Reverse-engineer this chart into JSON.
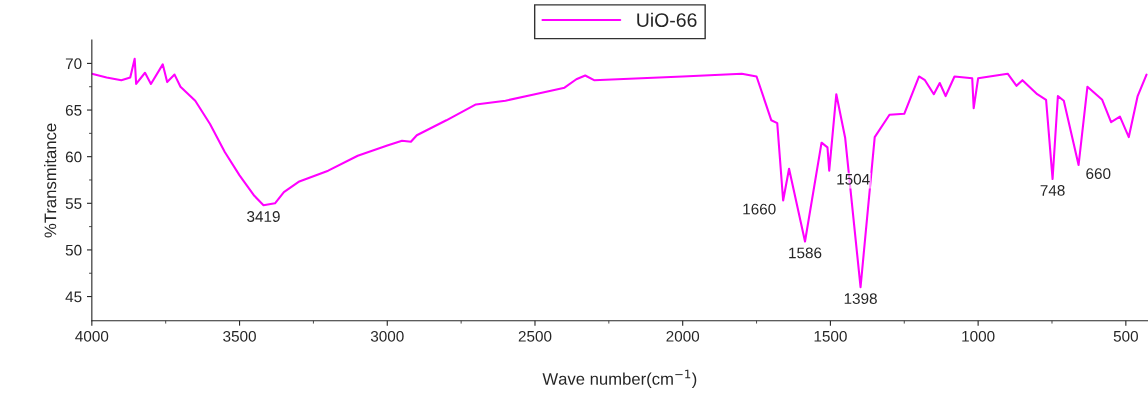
{
  "chart_data": {
    "type": "line",
    "xlabel": "Wave number(cm$^{−1}$)",
    "ylabel": "%Transmitance",
    "xlim": [
      4000,
      425
    ],
    "xticks": [
      4000,
      3500,
      3000,
      2500,
      2000,
      1500,
      1000,
      500
    ],
    "ylim": [
      42.4,
      72.5
    ],
    "yticks": [
      45,
      50,
      55,
      60,
      65,
      70
    ],
    "grid": false,
    "legend": "top",
    "marker": "none",
    "line_style": "solid",
    "series": [
      {
        "name": "UiO-66",
        "color": "#ff00ff",
        "x": [
          4000,
          3950,
          3900,
          3870,
          3855,
          3850,
          3820,
          3800,
          3760,
          3745,
          3720,
          3700,
          3650,
          3600,
          3550,
          3500,
          3450,
          3419,
          3380,
          3350,
          3300,
          3200,
          3100,
          3000,
          2950,
          2920,
          2900,
          2800,
          2700,
          2600,
          2500,
          2400,
          2360,
          2330,
          2300,
          2000,
          1800,
          1750,
          1700,
          1680,
          1660,
          1640,
          1586,
          1530,
          1510,
          1504,
          1480,
          1450,
          1398,
          1350,
          1300,
          1250,
          1200,
          1180,
          1150,
          1130,
          1110,
          1080,
          1020,
          1015,
          1000,
          900,
          870,
          850,
          800,
          770,
          748,
          730,
          710,
          660,
          630,
          580,
          550,
          520,
          490,
          460,
          430
        ],
        "values": [
          68.9,
          68.5,
          68.2,
          68.5,
          70.5,
          67.8,
          69.0,
          67.8,
          69.9,
          68.0,
          68.8,
          67.5,
          66.0,
          63.5,
          60.5,
          58.0,
          55.8,
          54.8,
          55.0,
          56.2,
          57.3,
          58.5,
          60.1,
          61.2,
          61.7,
          61.6,
          62.3,
          63.9,
          65.6,
          66.0,
          66.7,
          67.4,
          68.3,
          68.7,
          68.2,
          68.6,
          68.9,
          68.6,
          63.9,
          63.6,
          55.3,
          58.7,
          50.9,
          61.5,
          61.0,
          58.5,
          66.7,
          62.0,
          46.0,
          62.1,
          64.5,
          64.6,
          68.6,
          68.2,
          66.7,
          67.9,
          66.5,
          68.6,
          68.4,
          65.2,
          68.4,
          68.9,
          67.6,
          68.2,
          66.7,
          66.1,
          57.6,
          66.5,
          66.0,
          59.1,
          67.5,
          66.1,
          63.7,
          64.3,
          62.1,
          66.5,
          68.8
        ]
      }
    ],
    "annotations": [
      {
        "text": "3419",
        "x": 3419,
        "y": 54.8
      },
      {
        "text": "1660",
        "x": 1660,
        "y": 55.3
      },
      {
        "text": "1586",
        "x": 1586,
        "y": 50.9
      },
      {
        "text": "1504",
        "x": 1504,
        "y": 58.5
      },
      {
        "text": "1398",
        "x": 1398,
        "y": 46.0
      },
      {
        "text": "748",
        "x": 748,
        "y": 57.6
      },
      {
        "text": "660",
        "x": 660,
        "y": 59.1
      }
    ]
  }
}
